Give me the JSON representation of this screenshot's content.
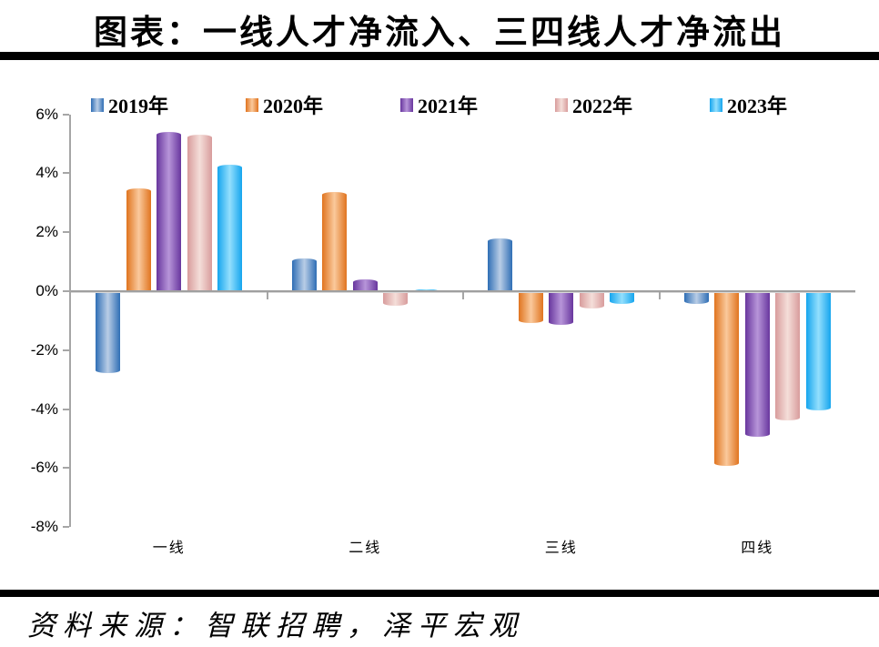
{
  "title": "图表：一线人才净流入、三四线人才净流出",
  "source": "资料来源：智联招聘，泽平宏观",
  "chart_data": {
    "type": "bar",
    "title": "图表：一线人才净流入、三四线人才净流出",
    "categories": [
      "一线",
      "二线",
      "三线",
      "四线"
    ],
    "series": [
      {
        "name": "2019年",
        "values": [
          -2.75,
          1.1,
          1.8,
          -0.4
        ],
        "color_edge": "#2f6eb5",
        "color_mid": "#b9cde6"
      },
      {
        "name": "2020年",
        "values": [
          3.5,
          3.35,
          -1.05,
          -5.9
        ],
        "color_edge": "#e0741f",
        "color_mid": "#fac99c"
      },
      {
        "name": "2021年",
        "values": [
          5.4,
          0.4,
          -1.1,
          -4.9
        ],
        "color_edge": "#68369e",
        "color_mid": "#b795d9"
      },
      {
        "name": "2022年",
        "values": [
          5.3,
          -0.45,
          -0.55,
          -4.35
        ],
        "color_edge": "#d89c9c",
        "color_mid": "#f4ded9"
      },
      {
        "name": "2023年",
        "values": [
          4.3,
          0.05,
          -0.4,
          -4.0
        ],
        "color_edge": "#15a5ee",
        "color_mid": "#93dffd"
      }
    ],
    "xlabel": "",
    "ylabel": "",
    "ylim": [
      -8,
      6
    ],
    "ytick_step": 2,
    "ytick_labels": [
      "6%",
      "4%",
      "2%",
      "0%",
      "-2%",
      "-4%",
      "-6%",
      "-8%"
    ],
    "grid": false,
    "legend_position": "top",
    "axis_color": "#a6a6a6",
    "title_rule_color": "#000000",
    "background_color": "#ffffff"
  }
}
